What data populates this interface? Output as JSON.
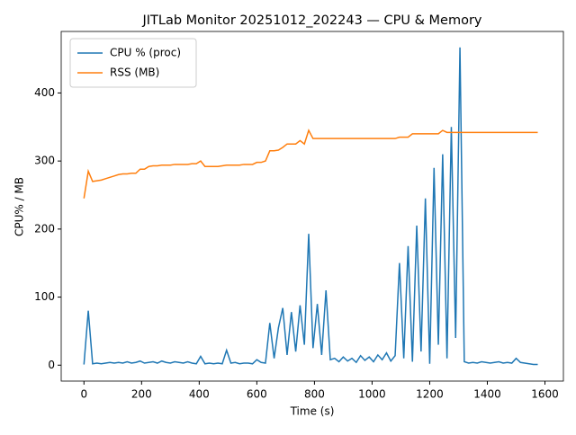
{
  "chart_data": {
    "type": "line",
    "title": "JITLab Monitor 20251012_202243 — CPU & Memory",
    "x_label": "Time (s)",
    "y_label": "CPU% / MB",
    "x": [
      0,
      15,
      30,
      45,
      60,
      75,
      90,
      105,
      120,
      135,
      150,
      165,
      180,
      195,
      210,
      225,
      240,
      255,
      270,
      285,
      300,
      315,
      330,
      345,
      360,
      375,
      390,
      405,
      420,
      435,
      450,
      465,
      480,
      495,
      510,
      525,
      540,
      555,
      570,
      585,
      600,
      615,
      630,
      645,
      660,
      675,
      690,
      705,
      720,
      735,
      750,
      765,
      780,
      795,
      810,
      825,
      840,
      855,
      870,
      885,
      900,
      915,
      930,
      945,
      960,
      975,
      990,
      1005,
      1020,
      1035,
      1050,
      1065,
      1080,
      1095,
      1110,
      1125,
      1140,
      1155,
      1170,
      1185,
      1200,
      1215,
      1230,
      1245,
      1260,
      1275,
      1290,
      1305,
      1320,
      1335,
      1350,
      1365,
      1380,
      1395,
      1410,
      1425,
      1440,
      1455,
      1470,
      1485,
      1500,
      1515,
      1530,
      1545,
      1560,
      1575
    ],
    "series": [
      {
        "name": "CPU % (proc)",
        "color": "#1f77b4",
        "values": [
          1,
          80,
          2,
          3,
          2,
          3,
          4,
          3,
          4,
          3,
          5,
          3,
          4,
          6,
          3,
          4,
          5,
          3,
          6,
          4,
          3,
          5,
          4,
          3,
          5,
          3,
          2,
          13,
          2,
          3,
          2,
          3,
          2,
          22,
          3,
          4,
          2,
          3,
          3,
          2,
          8,
          4,
          3,
          62,
          10,
          55,
          84,
          15,
          78,
          20,
          88,
          30,
          193,
          25,
          90,
          15,
          110,
          8,
          10,
          5,
          12,
          6,
          10,
          4,
          14,
          7,
          12,
          5,
          15,
          8,
          18,
          6,
          14,
          150,
          10,
          175,
          5,
          205,
          20,
          245,
          2,
          290,
          30,
          310,
          10,
          350,
          40,
          467,
          5,
          3,
          4,
          3,
          5,
          4,
          3,
          4,
          5,
          3,
          4,
          3,
          10,
          4,
          3,
          2,
          1,
          1
        ]
      },
      {
        "name": "RSS (MB)",
        "color": "#ff7f0e",
        "values": [
          245,
          285,
          270,
          271,
          272,
          274,
          276,
          278,
          280,
          281,
          281,
          282,
          282,
          288,
          288,
          292,
          293,
          293,
          294,
          294,
          294,
          295,
          295,
          295,
          295,
          296,
          296,
          300,
          292,
          292,
          292,
          292,
          293,
          294,
          294,
          294,
          294,
          295,
          295,
          295,
          298,
          298,
          300,
          315,
          315,
          316,
          320,
          325,
          325,
          325,
          330,
          325,
          345,
          333,
          333,
          333,
          333,
          333,
          333,
          333,
          333,
          333,
          333,
          333,
          333,
          333,
          333,
          333,
          333,
          333,
          333,
          333,
          333,
          335,
          335,
          335,
          340,
          340,
          340,
          340,
          340,
          340,
          340,
          345,
          342,
          342,
          342,
          342,
          342,
          342,
          342,
          342,
          342,
          342,
          342,
          342,
          342,
          342,
          342,
          342,
          342,
          342,
          342,
          342,
          342,
          342
        ]
      }
    ],
    "xlim": [
      -79,
      1664
    ],
    "ylim": [
      -23.4,
      490.4
    ],
    "xticks": [
      0,
      200,
      400,
      600,
      800,
      1000,
      1200,
      1400,
      1600
    ],
    "yticks": [
      0,
      100,
      200,
      300,
      400
    ],
    "legend": "upper left"
  }
}
